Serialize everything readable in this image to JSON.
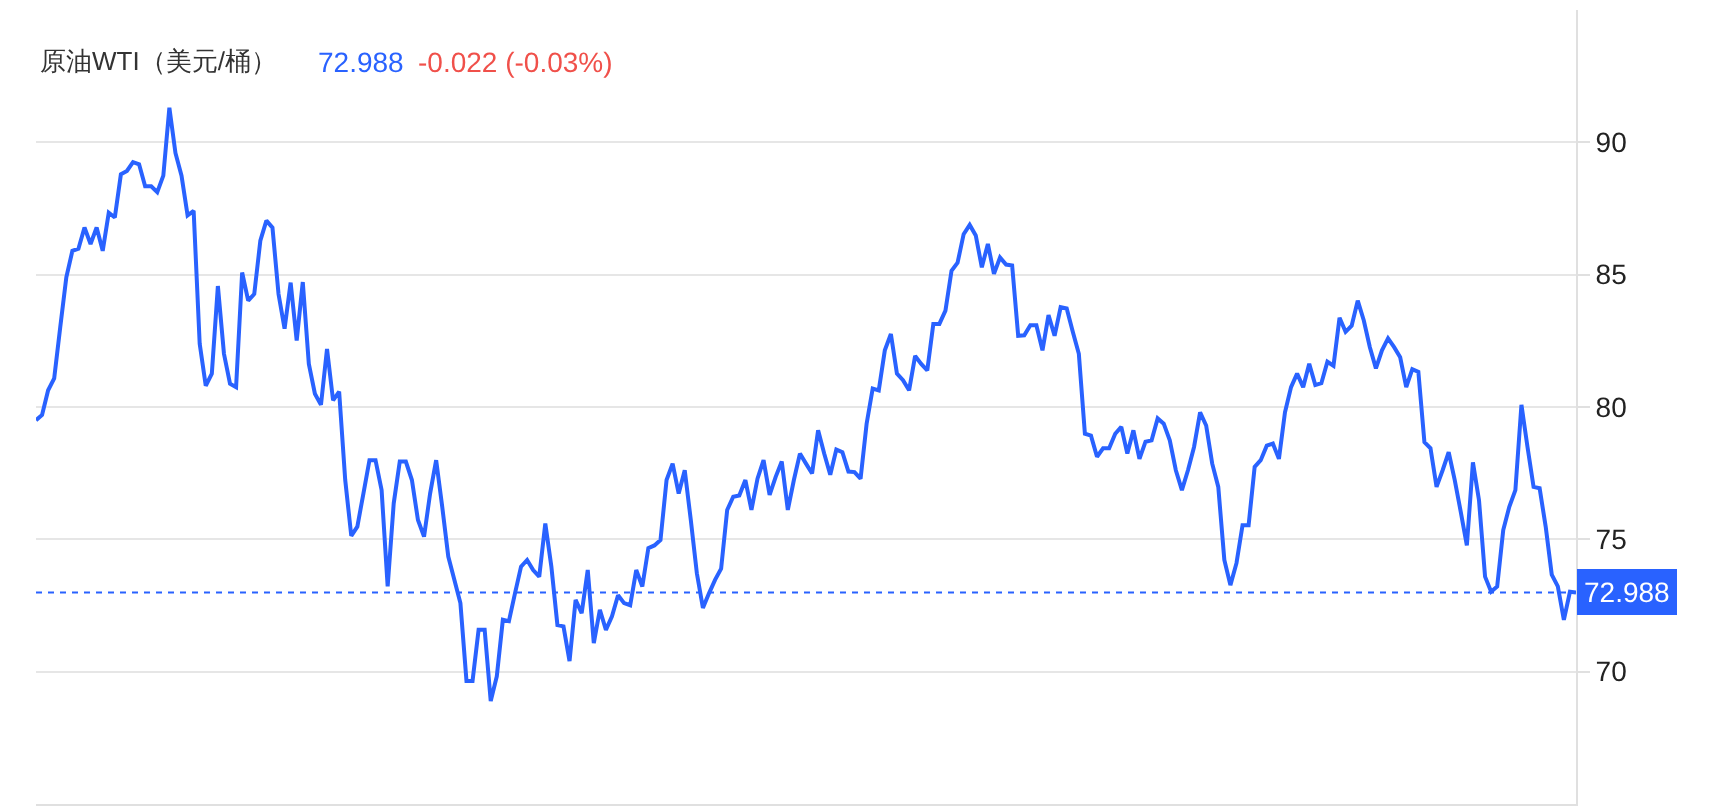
{
  "chart_data": {
    "type": "line",
    "title": "原油WTI（美元/桶）",
    "annotations": [
      "72.988",
      "-0.022 (-0.03%)"
    ],
    "ylim": [
      65,
      95
    ],
    "yticks": [
      70,
      75,
      80,
      85,
      90
    ],
    "grid": "y",
    "tick_labels": "y",
    "ref_lines": [
      {
        "axis": "y",
        "value": 72.988,
        "label": "72.988",
        "color": "#2962ff",
        "line_style": "dotted"
      }
    ],
    "categories": [
      null,
      null,
      null,
      null,
      null,
      null,
      null,
      null,
      null,
      null,
      null,
      null,
      null,
      null,
      null,
      null,
      null,
      null,
      null,
      null,
      null,
      null,
      null,
      null,
      null,
      null,
      null,
      null,
      null,
      null,
      null,
      null,
      null,
      null,
      null,
      null,
      null,
      null,
      null,
      null,
      null,
      null,
      null,
      null,
      null,
      null,
      null,
      null,
      null,
      null,
      null,
      null,
      null,
      null,
      null,
      null,
      null,
      null,
      null,
      null,
      null,
      null,
      null,
      null,
      null,
      null,
      null,
      null,
      null,
      null,
      null,
      null,
      null,
      null,
      null,
      null,
      null,
      null,
      null,
      null,
      null,
      null,
      null,
      null,
      null,
      null,
      null,
      null,
      null,
      null,
      null,
      null,
      null,
      null,
      null,
      null,
      null,
      null,
      null,
      null,
      null,
      null,
      null,
      null,
      null,
      null,
      null,
      null,
      null,
      null,
      null,
      null,
      null,
      null,
      null,
      null,
      null,
      null,
      null,
      null,
      null,
      null,
      null,
      null,
      null,
      null,
      null,
      null,
      null,
      null,
      null,
      null,
      null,
      null,
      null,
      null,
      null,
      null,
      null,
      null,
      null,
      null,
      null,
      null,
      null,
      null,
      null,
      null,
      null,
      null,
      null,
      null,
      null,
      null,
      null,
      null,
      null,
      null,
      null,
      null,
      null,
      null,
      null,
      null,
      null,
      null,
      null,
      null,
      null,
      null,
      null,
      null,
      null,
      null,
      null,
      null,
      null,
      null,
      null,
      null,
      null,
      null,
      null,
      null,
      null,
      null,
      null,
      null,
      null,
      null,
      null,
      null,
      null,
      null,
      null,
      null,
      null,
      null,
      null,
      null,
      null,
      null,
      null,
      null,
      null,
      null,
      null,
      null,
      null,
      null,
      null,
      null,
      null,
      null,
      null,
      null,
      null,
      null,
      null,
      null,
      null,
      null,
      null,
      null,
      null,
      null,
      null,
      null,
      null,
      null,
      null,
      null,
      null,
      null,
      null,
      null,
      null,
      null,
      null,
      null,
      null,
      null,
      null,
      null,
      null,
      null,
      null,
      null,
      null,
      null,
      null,
      null,
      null,
      null,
      null
    ],
    "series": [
      {
        "color": "#2962ff",
        "values": [
          79.5,
          79.7,
          80.63,
          81.08,
          83.02,
          84.9,
          85.9,
          85.98,
          86.78,
          86.16,
          86.78,
          85.9,
          87.34,
          87.16,
          88.79,
          88.92,
          89.25,
          89.17,
          88.34,
          88.34,
          88.12,
          88.74,
          91.31,
          89.6,
          88.74,
          87.24,
          87.41,
          82.39,
          80.8,
          81.26,
          84.57,
          82.01,
          80.88,
          80.75,
          85.08,
          84.02,
          84.27,
          86.28,
          87.04,
          86.78,
          84.27,
          82.96,
          84.7,
          82.51,
          84.72,
          81.63,
          80.5,
          80.08,
          82.19,
          80.25,
          80.58,
          77.24,
          75.13,
          75.48,
          76.73,
          77.99,
          77.99,
          76.86,
          73.22,
          76.36,
          77.94,
          77.94,
          77.24,
          75.73,
          75.1,
          76.73,
          77.99,
          76.23,
          74.35,
          73.47,
          72.59,
          69.65,
          69.65,
          71.58,
          71.58,
          68.89,
          69.82,
          71.96,
          71.91,
          72.96,
          73.97,
          74.22,
          73.84,
          73.59,
          75.6,
          73.97,
          71.76,
          71.71,
          70.4,
          72.71,
          72.21,
          73.84,
          71.08,
          72.34,
          71.58,
          72.09,
          72.89,
          72.59,
          72.51,
          73.84,
          73.22,
          74.67,
          74.77,
          74.97,
          77.24,
          77.86,
          76.73,
          77.61,
          75.73,
          73.72,
          72.41,
          72.96,
          73.47,
          73.89,
          76.11,
          76.61,
          76.66,
          77.24,
          76.11,
          77.29,
          77.99,
          76.68,
          77.36,
          77.94,
          76.11,
          77.24,
          78.24,
          77.86,
          77.49,
          79.12,
          78.24,
          77.44,
          78.39,
          78.29,
          77.56,
          77.54,
          77.29,
          79.37,
          80.7,
          80.63,
          82.14,
          82.76,
          81.26,
          81.01,
          80.63,
          81.93,
          81.63,
          81.38,
          83.14,
          83.14,
          83.64,
          85.15,
          85.45,
          86.53,
          86.88,
          86.48,
          85.28,
          86.16,
          85.03,
          85.65,
          85.38,
          85.35,
          82.69,
          82.71,
          83.09,
          83.09,
          82.14,
          83.47,
          82.69,
          83.77,
          83.72,
          82.84,
          82.01,
          78.99,
          78.92,
          78.12,
          78.44,
          78.44,
          78.99,
          79.25,
          78.24,
          79.12,
          78.04,
          78.69,
          78.74,
          79.57,
          79.37,
          78.74,
          77.61,
          76.86,
          77.61,
          78.49,
          79.8,
          79.3,
          77.86,
          76.98,
          74.22,
          73.27,
          74.1,
          75.53,
          75.53,
          77.74,
          77.99,
          78.54,
          78.62,
          78.04,
          79.8,
          80.75,
          81.26,
          80.75,
          81.63,
          80.83,
          80.9,
          81.71,
          81.56,
          83.37,
          82.84,
          83.07,
          84.02,
          83.27,
          82.26,
          81.46,
          82.14,
          82.59,
          82.26,
          81.88,
          80.75,
          81.43,
          81.33,
          78.67,
          78.44,
          76.98,
          77.61,
          78.29,
          77.24,
          76.03,
          74.77,
          77.91,
          76.48,
          73.59,
          73.02,
          73.22,
          75.35,
          76.23,
          76.86,
          80.08,
          78.49,
          76.98,
          76.93,
          75.48,
          73.67,
          73.22,
          71.96,
          73.02,
          72.99
        ]
      }
    ]
  }
}
